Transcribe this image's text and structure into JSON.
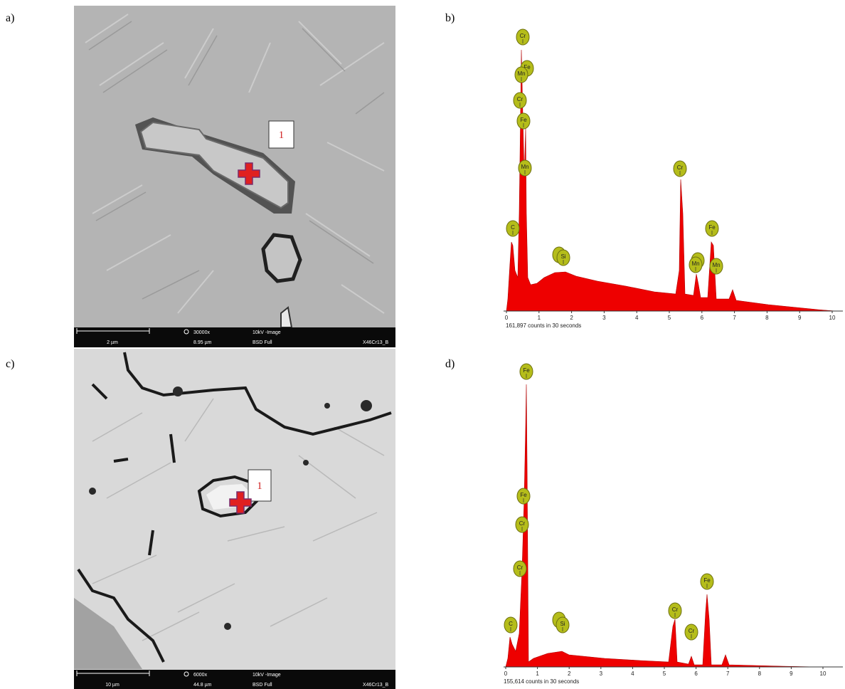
{
  "panels": [
    {
      "label": "a)",
      "scale_bar": "2 µm",
      "magnification": "30000x",
      "mode": "10kV -Image",
      "field": "8.95 µm",
      "detector": "BSD Full",
      "sample": "X46Cr13_B",
      "marker": "1"
    },
    {
      "label": "b)",
      "x_ticks": [
        0,
        1,
        2,
        3,
        4,
        5,
        6,
        7,
        8,
        9,
        10
      ],
      "caption": "161,897 counts in 30 seconds",
      "peaks": [
        "Cr",
        "Fe",
        "Mn",
        "Cr",
        "Fe",
        "Mn",
        "C",
        "Si",
        "Cr",
        "Fe",
        "Mn",
        "Mn"
      ]
    },
    {
      "label": "c)",
      "scale_bar": "10 µm",
      "magnification": "6000x",
      "mode": "10kV -Image",
      "field": "44.8 µm",
      "detector": "BSD Full",
      "sample": "X46Cr13_B",
      "marker": "1"
    },
    {
      "label": "d)",
      "x_ticks": [
        0,
        1,
        2,
        3,
        4,
        5,
        6,
        7,
        8,
        9,
        10
      ],
      "caption": "155,614 counts in 30 seconds",
      "peaks": [
        "Fe",
        "Fe",
        "Cr",
        "Cr",
        "C",
        "Si",
        "Cr",
        "Cr",
        "Fe"
      ]
    }
  ]
}
